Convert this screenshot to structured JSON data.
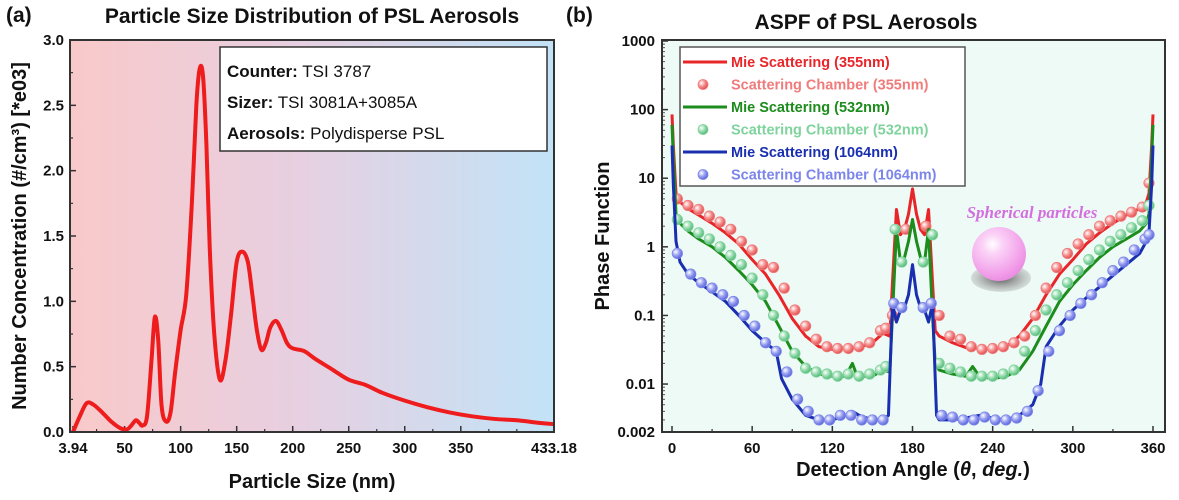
{
  "panels": {
    "a": {
      "label": "(a)"
    },
    "b": {
      "label": "(b)"
    }
  },
  "chart_data": [
    {
      "type": "line",
      "title": "Particle Size Distribution of PSL Aerosols",
      "xlabel": "Particle Size (nm)",
      "ylabel": "Number Concentration (#/cm³) [*e03]",
      "xlim": [
        3.94,
        433.18
      ],
      "ylim": [
        0,
        3.0
      ],
      "xticks": [
        "3.94",
        "50",
        "100",
        "150",
        "200",
        "250",
        "300",
        "350",
        "433.18"
      ],
      "xtick_values": [
        3.94,
        50,
        100,
        150,
        200,
        250,
        300,
        350,
        433.18
      ],
      "yticks": [
        "0.0",
        "0.5",
        "1.0",
        "1.5",
        "2.0",
        "2.5",
        "3.0"
      ],
      "ytick_values": [
        0,
        0.5,
        1.0,
        1.5,
        2.0,
        2.5,
        3.0
      ],
      "background": {
        "left_color": "#f9c9c9",
        "right_color": "#c2e3f7"
      },
      "grid": false,
      "legend_box": {
        "position": "top-right",
        "lines": [
          {
            "key": "Counter:",
            "value": " TSI 3787"
          },
          {
            "key": "Sizer:",
            "value": " TSI 3081A+3085A"
          },
          {
            "key": "Aerosols:",
            "value": " Polydisperse PSL"
          }
        ]
      },
      "series": [
        {
          "name": "PSD",
          "color": "#ee1c1c",
          "x": [
            3.94,
            10,
            16,
            22,
            30,
            38,
            46,
            52,
            56,
            60,
            63,
            66,
            70,
            74,
            77,
            80,
            83,
            87,
            91,
            95,
            100,
            105,
            110,
            114,
            117,
            120,
            123,
            126,
            130,
            135,
            140,
            145,
            150,
            155,
            160,
            164,
            168,
            172,
            176,
            180,
            185,
            190,
            195,
            200,
            210,
            220,
            235,
            250,
            265,
            280,
            300,
            320,
            340,
            360,
            380,
            400,
            420,
            433.18
          ],
          "y": [
            0.0,
            0.12,
            0.22,
            0.21,
            0.15,
            0.08,
            0.03,
            0.02,
            0.05,
            0.09,
            0.07,
            0.05,
            0.12,
            0.55,
            0.88,
            0.7,
            0.2,
            0.08,
            0.15,
            0.45,
            0.78,
            1.05,
            1.75,
            2.5,
            2.78,
            2.72,
            2.2,
            1.4,
            0.75,
            0.4,
            0.55,
            0.9,
            1.3,
            1.38,
            1.3,
            1.05,
            0.78,
            0.63,
            0.68,
            0.8,
            0.85,
            0.78,
            0.68,
            0.64,
            0.62,
            0.56,
            0.48,
            0.4,
            0.36,
            0.3,
            0.24,
            0.19,
            0.15,
            0.12,
            0.1,
            0.09,
            0.07,
            0.06
          ]
        }
      ]
    },
    {
      "type": "line",
      "title": "ASPF of PSL Aerosols",
      "xlabel": "Detection Angle (θ, deg.)",
      "xlabel_parts": {
        "pre": "Detection Angle (",
        "theta": "θ",
        "mid": ", ",
        "deg": "deg.",
        "post": ")"
      },
      "ylabel": "Phase Function",
      "xlim": [
        -5,
        365
      ],
      "ylim": [
        0.002,
        1000
      ],
      "yscale": "log",
      "xticks": [
        "0",
        "60",
        "120",
        "180",
        "240",
        "300",
        "360"
      ],
      "xtick_values": [
        0,
        60,
        120,
        180,
        240,
        300,
        360
      ],
      "yticks": [
        "0.002",
        "0.01",
        "0.1",
        "1",
        "10",
        "100",
        "1000"
      ],
      "ytick_values": [
        0.002,
        0.01,
        0.1,
        1,
        10,
        100,
        1000
      ],
      "background": "#eefaf6",
      "grid": false,
      "legend": {
        "position": "top-left",
        "entries": [
          {
            "label": "Mie Scattering (355nm)",
            "color": "#e8262a",
            "kind": "line"
          },
          {
            "label": "Scattering Chamber (355nm)",
            "color": "#f07b7b",
            "kind": "marker"
          },
          {
            "label": "Mie Scattering (532nm)",
            "color": "#1c8c1c",
            "kind": "line"
          },
          {
            "label": "Scattering Chamber (532nm)",
            "color": "#7fd39c",
            "kind": "marker"
          },
          {
            "label": "Mie Scattering (1064nm)",
            "color": "#1a2fb0",
            "kind": "line"
          },
          {
            "label": "Scattering Chamber (1064nm)",
            "color": "#7c86ea",
            "kind": "marker"
          }
        ]
      },
      "annotation": {
        "text": "Spherical particles",
        "color": "#d46ee0",
        "position": "upper-right",
        "sphere_color": "#f5a8ee"
      },
      "series": [
        {
          "name": "Mie Scattering (355nm)",
          "kind": "line",
          "color": "#e8262a",
          "x": [
            0,
            1,
            3,
            6,
            12,
            20,
            30,
            40,
            50,
            60,
            70,
            80,
            90,
            100,
            110,
            120,
            130,
            140,
            150,
            158,
            163,
            165,
            168,
            171,
            174,
            177,
            180,
            183,
            186,
            189,
            192,
            195,
            197,
            200,
            210,
            220,
            230,
            240,
            250,
            260,
            270,
            280,
            290,
            300,
            310,
            320,
            330,
            340,
            350,
            355,
            357,
            359,
            360
          ],
          "y": [
            85,
            30,
            6,
            4.5,
            3.6,
            2.9,
            2.2,
            1.6,
            1.1,
            0.65,
            0.4,
            0.2,
            0.09,
            0.05,
            0.035,
            0.032,
            0.033,
            0.034,
            0.04,
            0.055,
            0.05,
            0.3,
            3.5,
            1.5,
            1.8,
            3,
            7,
            3,
            1.8,
            1.5,
            3.5,
            0.3,
            0.06,
            0.05,
            0.04,
            0.034,
            0.033,
            0.032,
            0.035,
            0.05,
            0.09,
            0.2,
            0.4,
            0.65,
            1.1,
            1.6,
            2.2,
            2.9,
            3.6,
            4.5,
            6,
            30,
            85
          ]
        },
        {
          "name": "Scattering Chamber (355nm)",
          "kind": "marker",
          "color": "#f07b7b",
          "x": [
            4,
            12,
            20,
            28,
            36,
            44,
            52,
            60,
            68,
            76,
            84,
            92,
            100,
            108,
            116,
            124,
            132,
            140,
            148,
            156,
            160,
            165,
            175,
            190,
            200,
            208,
            216,
            224,
            232,
            240,
            248,
            256,
            264,
            272,
            280,
            288,
            296,
            304,
            312,
            320,
            328,
            336,
            344,
            352,
            357
          ],
          "y": [
            5,
            4,
            3.5,
            2.8,
            2.3,
            1.8,
            1.2,
            0.9,
            0.55,
            0.5,
            0.25,
            0.12,
            0.07,
            0.045,
            0.035,
            0.033,
            0.033,
            0.035,
            0.04,
            0.06,
            0.065,
            0.1,
            1.8,
            2,
            0.1,
            0.05,
            0.045,
            0.035,
            0.032,
            0.033,
            0.035,
            0.04,
            0.05,
            0.1,
            0.25,
            0.5,
            0.8,
            1.1,
            1.5,
            2,
            2.4,
            2.8,
            3.2,
            3.8,
            8.5
          ]
        },
        {
          "name": "Mie Scattering (532nm)",
          "kind": "line",
          "color": "#1c8c1c",
          "x": [
            0,
            1,
            3,
            6,
            12,
            20,
            30,
            40,
            50,
            60,
            70,
            80,
            90,
            100,
            110,
            120,
            130,
            135,
            138,
            140,
            150,
            158,
            163,
            165,
            168,
            171,
            174,
            177,
            180,
            183,
            186,
            189,
            192,
            195,
            197,
            200,
            210,
            220,
            225,
            230,
            240,
            250,
            260,
            270,
            280,
            290,
            300,
            310,
            320,
            330,
            340,
            350,
            355,
            357,
            359,
            360
          ],
          "y": [
            60,
            20,
            3,
            2.2,
            1.7,
            1.3,
            1.0,
            0.7,
            0.45,
            0.28,
            0.16,
            0.07,
            0.03,
            0.018,
            0.014,
            0.013,
            0.013,
            0.02,
            0.014,
            0.013,
            0.013,
            0.016,
            0.015,
            0.1,
            1.8,
            0.6,
            0.7,
            1.2,
            2.5,
            1.2,
            0.7,
            0.6,
            1.8,
            0.1,
            0.02,
            0.016,
            0.014,
            0.013,
            0.018,
            0.013,
            0.012,
            0.013,
            0.016,
            0.03,
            0.07,
            0.16,
            0.28,
            0.45,
            0.7,
            1.0,
            1.3,
            1.7,
            2.2,
            3,
            20,
            60
          ]
        },
        {
          "name": "Scattering Chamber (532nm)",
          "kind": "marker",
          "color": "#7fd39c",
          "x": [
            4,
            12,
            20,
            28,
            36,
            44,
            52,
            60,
            68,
            76,
            84,
            92,
            100,
            108,
            116,
            124,
            132,
            140,
            148,
            156,
            160,
            167,
            172,
            188,
            195,
            200,
            208,
            216,
            224,
            232,
            240,
            248,
            256,
            264,
            272,
            280,
            288,
            296,
            304,
            312,
            320,
            328,
            336,
            344,
            352,
            357
          ],
          "y": [
            2.5,
            2.0,
            1.6,
            1.3,
            1.0,
            0.75,
            0.55,
            0.35,
            0.2,
            0.1,
            0.05,
            0.028,
            0.017,
            0.015,
            0.014,
            0.013,
            0.014,
            0.013,
            0.014,
            0.016,
            0.018,
            1.8,
            0.6,
            0.6,
            1.5,
            0.02,
            0.017,
            0.015,
            0.013,
            0.013,
            0.013,
            0.014,
            0.016,
            0.03,
            0.06,
            0.12,
            0.2,
            0.3,
            0.45,
            0.65,
            0.9,
            1.2,
            1.5,
            1.9,
            2.4,
            4
          ]
        },
        {
          "name": "Mie Scattering (1064nm)",
          "kind": "line",
          "color": "#1a2fb0",
          "x": [
            0,
            1,
            3,
            6,
            12,
            20,
            30,
            40,
            50,
            60,
            70,
            78,
            82,
            90,
            100,
            110,
            120,
            130,
            135,
            140,
            150,
            158,
            162,
            165,
            168,
            171,
            174,
            177,
            180,
            183,
            186,
            189,
            192,
            195,
            198,
            200,
            210,
            220,
            230,
            240,
            250,
            260,
            270,
            276,
            280,
            290,
            300,
            310,
            320,
            330,
            340,
            350,
            355,
            357,
            359,
            360
          ],
          "y": [
            30,
            8,
            1.2,
            0.6,
            0.4,
            0.3,
            0.22,
            0.16,
            0.1,
            0.06,
            0.04,
            0.03,
            0.012,
            0.006,
            0.0035,
            0.003,
            0.003,
            0.0035,
            0.004,
            0.0035,
            0.003,
            0.003,
            0.0035,
            0.15,
            0.08,
            0.12,
            0.13,
            0.2,
            0.55,
            0.2,
            0.13,
            0.12,
            0.08,
            0.15,
            0.0035,
            0.003,
            0.003,
            0.0032,
            0.0035,
            0.0032,
            0.003,
            0.0035,
            0.005,
            0.01,
            0.035,
            0.07,
            0.12,
            0.18,
            0.26,
            0.38,
            0.55,
            0.8,
            1.2,
            1.6,
            8,
            30
          ]
        },
        {
          "name": "Scattering Chamber (1064nm)",
          "kind": "marker",
          "color": "#7c86ea",
          "x": [
            4,
            14,
            22,
            30,
            38,
            46,
            54,
            62,
            70,
            78,
            86,
            94,
            102,
            110,
            118,
            126,
            134,
            142,
            150,
            158,
            166,
            172,
            188,
            194,
            202,
            210,
            218,
            226,
            234,
            242,
            250,
            258,
            266,
            274,
            282,
            290,
            298,
            306,
            314,
            322,
            330,
            338,
            346,
            354,
            357
          ],
          "y": [
            0.8,
            0.4,
            0.3,
            0.25,
            0.2,
            0.16,
            0.1,
            0.07,
            0.04,
            0.03,
            0.015,
            0.006,
            0.004,
            0.003,
            0.003,
            0.0035,
            0.0035,
            0.003,
            0.003,
            0.003,
            0.15,
            0.13,
            0.13,
            0.15,
            0.0035,
            0.0033,
            0.003,
            0.003,
            0.0033,
            0.003,
            0.003,
            0.0032,
            0.004,
            0.008,
            0.03,
            0.06,
            0.1,
            0.15,
            0.2,
            0.3,
            0.45,
            0.6,
            0.9,
            1.3,
            1.5
          ]
        }
      ]
    }
  ]
}
